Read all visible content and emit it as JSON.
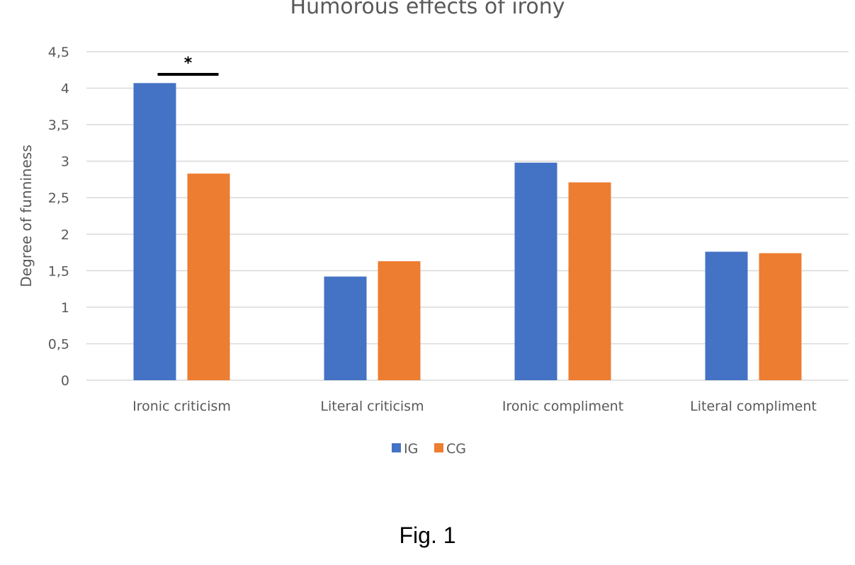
{
  "chart_data": {
    "type": "bar",
    "title": "Humorous effects of irony",
    "xlabel": "",
    "ylabel": "Degree of funniness",
    "ylim": [
      0,
      4.5
    ],
    "yticks": [
      "0",
      "0,5",
      "1",
      "1,5",
      "2",
      "2,5",
      "3",
      "3,5",
      "4",
      "4,5"
    ],
    "grid": true,
    "legend_position": "bottom",
    "categories": [
      "Ironic criticism",
      "Literal criticism",
      "Ironic compliment",
      "Literal compliment"
    ],
    "series": [
      {
        "name": "IG",
        "color": "#4472C4",
        "values": [
          4.07,
          1.42,
          2.98,
          1.76
        ]
      },
      {
        "name": "CG",
        "color": "#ED7D31",
        "values": [
          2.83,
          1.63,
          2.71,
          1.74
        ]
      }
    ],
    "annotations": [
      {
        "text": "*",
        "category": "Ironic criticism",
        "note": "significance bracket between IG and CG"
      }
    ]
  },
  "caption": "Fig. 1"
}
